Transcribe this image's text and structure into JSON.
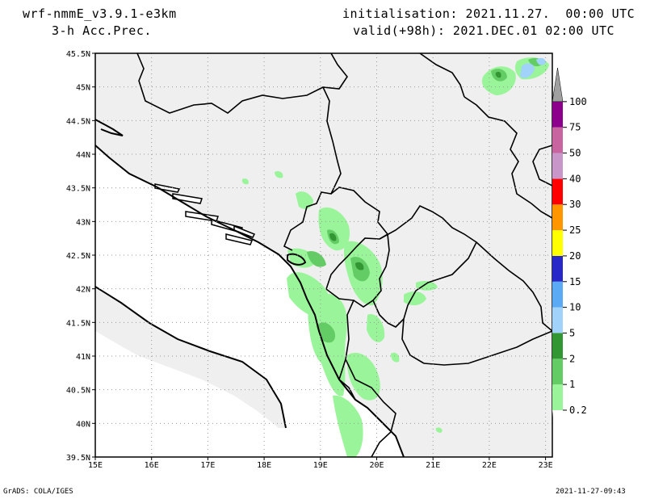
{
  "header": {
    "model": "wrf-nmmE_v3.9.1-e3km",
    "field": "3-h Acc.Prec.",
    "init": "initialisation: 2021.11.27.  00:00 UTC",
    "valid": "valid(+98h): 2021.DEC.01 02:00 UTC"
  },
  "footer": {
    "credit": "GrADS: COLA/IGES",
    "timestamp": "2021-11-27-09:43"
  },
  "map": {
    "lat_labels": [
      "45.5N",
      "45N",
      "44.5N",
      "44N",
      "43.5N",
      "43N",
      "42.5N",
      "42N",
      "41.5N",
      "41N",
      "40.5N",
      "40N",
      "39.5N"
    ],
    "lon_labels": [
      "15E",
      "16E",
      "17E",
      "18E",
      "19E",
      "20E",
      "21E",
      "22E",
      "23E"
    ],
    "land_color": "#efefef",
    "sea_color": "#ffffff"
  },
  "colorbar": {
    "levels": [
      "0.2",
      "1",
      "2",
      "5",
      "10",
      "15",
      "20",
      "25",
      "30",
      "40",
      "50",
      "75",
      "100"
    ],
    "colors": [
      "#9af59a",
      "#64cc64",
      "#329632",
      "#a0d2fa",
      "#5aaaf5",
      "#2828c8",
      "#ffff00",
      "#ff9600",
      "#ff0000",
      "#c896c8",
      "#c864a0",
      "#8c008c",
      "#a0a0a0"
    ]
  }
}
